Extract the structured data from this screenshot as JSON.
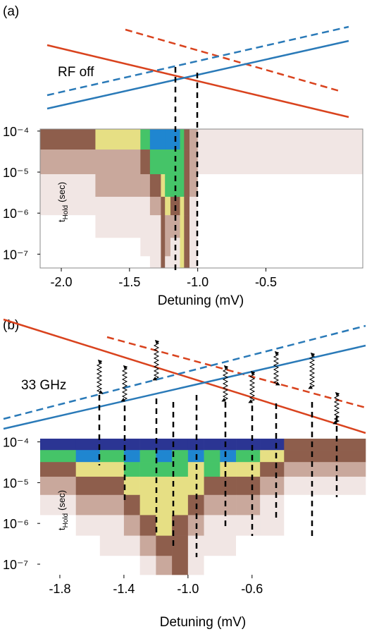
{
  "chart_data": [
    {
      "type": "heatmap",
      "panel_label": "(a)",
      "annotation": "RF off",
      "x_label": "Detuning (mV)",
      "y_label": {
        "t": "t",
        "sub": "Hold",
        "unit": "(sec)"
      },
      "xlim": [
        -2.155,
        0.21
      ],
      "xticks": [
        {
          "value": -2,
          "label": "-2.0"
        },
        -1.5,
        {
          "value": -1,
          "label": "-1.0"
        },
        -0.5
      ],
      "ylim": [
        4.6e-08,
        0.000112
      ],
      "log_y": true,
      "yticks": [
        {
          "value": 0.0001,
          "label": "10⁻⁴"
        },
        {
          "value": 1e-05,
          "label": "10⁻⁵"
        },
        {
          "value": 1e-06,
          "label": "10⁻⁶"
        },
        {
          "value": 1e-07,
          "label": "10⁻⁷"
        }
      ],
      "x_edges": [
        -2.155,
        -1.75,
        -1.42,
        -1.35,
        -1.27,
        -1.24,
        -1.2,
        -1.13,
        -1.1,
        -1.06,
        -1.0,
        0.21
      ],
      "y_edges": [
        0.000112,
        3.55e-05,
        8.9e-06,
        2.5e-06,
        8.9e-07,
        2.5e-07,
        8.9e-08,
        4.6e-08
      ],
      "colormap": [
        "#ffffff",
        "#f1e6e4",
        "#c9a89c",
        "#8e5e4c",
        "#e6df84",
        "#45c468",
        "#1f86d0",
        "#2b3593"
      ],
      "z": [
        [
          3,
          4,
          5,
          6,
          6,
          6,
          6,
          5,
          3,
          2,
          1
        ],
        [
          2,
          2,
          3,
          5,
          5,
          5,
          5,
          5,
          3,
          2,
          1
        ],
        [
          1,
          2,
          2,
          3,
          4,
          5,
          5,
          5,
          3,
          2,
          0
        ],
        [
          1,
          1,
          1,
          2,
          3,
          4,
          3,
          4,
          3,
          1,
          0
        ],
        [
          0,
          1,
          1,
          1,
          3,
          2,
          2,
          4,
          3,
          1,
          0
        ],
        [
          0,
          0,
          1,
          1,
          3,
          2,
          1,
          4,
          3,
          1,
          0
        ],
        [
          0,
          0,
          0,
          1,
          3,
          1,
          1,
          4,
          3,
          1,
          0
        ]
      ]
    },
    {
      "type": "heatmap",
      "panel_label": "(b)",
      "annotation": "33 GHz",
      "x_label": "Detuning (mV)",
      "y_label": {
        "t": "t",
        "sub": "Hold",
        "unit": "(sec)"
      },
      "xlim": [
        -1.923,
        0.109
      ],
      "xticks": [
        -1.8,
        -1.4,
        {
          "value": -1,
          "label": "-1.0"
        },
        -0.6
      ],
      "ylim": [
        5.5e-08,
        0.00012
      ],
      "log_y": true,
      "yticks": [
        {
          "value": 0.0001,
          "label": "10⁻⁴"
        },
        {
          "value": 1e-05,
          "label": "10⁻⁵"
        },
        {
          "value": 1e-06,
          "label": "10⁻⁶"
        },
        {
          "value": 1e-07,
          "label": "10⁻⁷"
        }
      ],
      "x_edges": [
        -1.923,
        -1.7,
        -1.55,
        -1.4,
        -1.3,
        -1.2,
        -1.1,
        -1.0,
        -0.9,
        -0.8,
        -0.7,
        -0.55,
        -0.4,
        0.109
      ],
      "y_edges": [
        0.00012,
        6.3e-05,
        3.2e-05,
        1.4e-05,
        5e-06,
        1.6e-06,
        5e-07,
        1.6e-07,
        5.5e-08
      ],
      "colormap": [
        "#ffffff",
        "#f1e6e4",
        "#c9a89c",
        "#8e5e4c",
        "#e6df84",
        "#45c468",
        "#1f86d0",
        "#2b3593"
      ],
      "z": [
        [
          7,
          7,
          7,
          7,
          7,
          7,
          7,
          7,
          7,
          7,
          7,
          7,
          3
        ],
        [
          5,
          6,
          5,
          6,
          5,
          6,
          5,
          6,
          5,
          6,
          5,
          4,
          3
        ],
        [
          3,
          4,
          4,
          5,
          5,
          5,
          5,
          4,
          5,
          4,
          4,
          3,
          2
        ],
        [
          2,
          3,
          3,
          4,
          4,
          4,
          4,
          4,
          3,
          3,
          3,
          2,
          1
        ],
        [
          1,
          2,
          2,
          3,
          4,
          4,
          4,
          3,
          2,
          2,
          2,
          1,
          0
        ],
        [
          0,
          1,
          1,
          2,
          3,
          4,
          3,
          2,
          1,
          1,
          1,
          1,
          0
        ],
        [
          0,
          0,
          1,
          1,
          2,
          3,
          3,
          1,
          1,
          1,
          0,
          0,
          0
        ],
        [
          0,
          0,
          0,
          0,
          1,
          2,
          3,
          1,
          0,
          0,
          0,
          0,
          0
        ]
      ]
    }
  ]
}
